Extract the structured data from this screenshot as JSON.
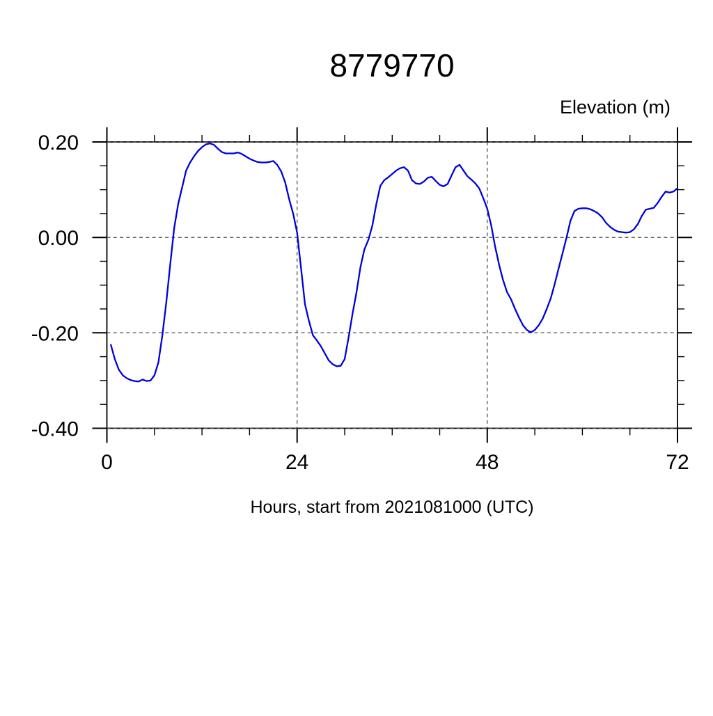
{
  "page_title": "8779770",
  "chart_data": {
    "type": "line",
    "title": "8779770",
    "y_axis_title": "Elevation (m)",
    "x_axis_title": "Hours, start from 2021081000 (UTC)",
    "xlim": [
      0,
      72
    ],
    "ylim": [
      -0.4,
      0.2
    ],
    "x_major_ticks": [
      0,
      24,
      48,
      72
    ],
    "x_tick_labels": [
      "0",
      "24",
      "48",
      "72"
    ],
    "x_minor_tick_step": 6,
    "y_major_ticks": [
      0.2,
      0.0,
      -0.2,
      -0.4
    ],
    "y_tick_labels": [
      "0.20",
      "0.00",
      "-0.20",
      "-0.40"
    ],
    "y_minor_tick_step": 0.05,
    "x_gridlines": [
      24,
      48
    ],
    "y_gridlines": [
      0.2,
      0.0,
      -0.2,
      -0.4
    ],
    "grid_style": "dashed",
    "legend": "none",
    "line_color": "#0000dd",
    "series": [
      {
        "name": "elevation",
        "x": [
          0.5,
          1,
          1.5,
          2,
          2.5,
          3,
          3.5,
          4,
          4.5,
          5,
          5.5,
          6,
          6.5,
          7,
          7.5,
          8,
          8.5,
          9,
          9.5,
          10,
          10.5,
          11,
          11.5,
          12,
          12.5,
          13,
          13.5,
          14,
          14.5,
          15,
          15.5,
          16,
          16.5,
          17,
          17.5,
          18,
          18.5,
          19,
          19.5,
          20,
          20.5,
          21,
          21.5,
          22,
          22.5,
          23,
          23.5,
          24,
          24.5,
          25,
          25.5,
          26,
          26.5,
          27,
          27.5,
          28,
          28.5,
          29,
          29.5,
          30,
          30.5,
          31,
          31.5,
          32,
          32.5,
          33,
          33.5,
          34,
          34.5,
          35,
          35.5,
          36,
          36.5,
          37,
          37.5,
          38,
          38.5,
          39,
          39.5,
          40,
          40.5,
          41,
          41.5,
          42,
          42.5,
          43,
          43.5,
          44,
          44.5,
          45,
          45.5,
          46,
          46.5,
          47,
          47.5,
          48,
          48.5,
          49,
          49.5,
          50,
          50.5,
          51,
          51.5,
          52,
          52.5,
          53,
          53.5,
          54,
          54.5,
          55,
          55.5,
          56,
          56.5,
          57,
          57.5,
          58,
          58.5,
          59,
          59.5,
          60,
          60.5,
          61,
          61.5,
          62,
          62.5,
          63,
          63.5,
          64,
          64.5,
          65,
          65.5,
          66,
          66.5,
          67,
          67.5,
          68,
          68.5,
          69,
          69.5,
          70,
          70.5,
          71,
          71.5,
          72
        ],
        "y": [
          -0.225,
          -0.255,
          -0.277,
          -0.289,
          -0.295,
          -0.299,
          -0.301,
          -0.302,
          -0.298,
          -0.301,
          -0.3,
          -0.289,
          -0.262,
          -0.205,
          -0.135,
          -0.055,
          0.02,
          0.07,
          0.105,
          0.14,
          0.157,
          0.17,
          0.181,
          0.189,
          0.195,
          0.197,
          0.194,
          0.186,
          0.179,
          0.176,
          0.176,
          0.176,
          0.178,
          0.175,
          0.17,
          0.165,
          0.161,
          0.158,
          0.157,
          0.157,
          0.158,
          0.16,
          0.152,
          0.138,
          0.115,
          0.08,
          0.05,
          0.01,
          -0.065,
          -0.14,
          -0.175,
          -0.205,
          -0.216,
          -0.228,
          -0.243,
          -0.258,
          -0.266,
          -0.27,
          -0.269,
          -0.255,
          -0.21,
          -0.16,
          -0.115,
          -0.062,
          -0.025,
          -0.005,
          0.025,
          0.07,
          0.108,
          0.12,
          0.126,
          0.133,
          0.14,
          0.145,
          0.147,
          0.14,
          0.12,
          0.113,
          0.112,
          0.117,
          0.125,
          0.127,
          0.118,
          0.11,
          0.107,
          0.112,
          0.13,
          0.147,
          0.152,
          0.14,
          0.128,
          0.121,
          0.113,
          0.102,
          0.082,
          0.06,
          0.025,
          -0.02,
          -0.058,
          -0.09,
          -0.115,
          -0.13,
          -0.15,
          -0.168,
          -0.184,
          -0.194,
          -0.199,
          -0.194,
          -0.184,
          -0.17,
          -0.15,
          -0.128,
          -0.098,
          -0.065,
          -0.033,
          0.0,
          0.035,
          0.055,
          0.06,
          0.061,
          0.061,
          0.059,
          0.055,
          0.05,
          0.042,
          0.03,
          0.022,
          0.016,
          0.012,
          0.011,
          0.01,
          0.011,
          0.017,
          0.028,
          0.045,
          0.058,
          0.06,
          0.062,
          0.072,
          0.085,
          0.096,
          0.094,
          0.096,
          0.103
        ]
      }
    ]
  }
}
